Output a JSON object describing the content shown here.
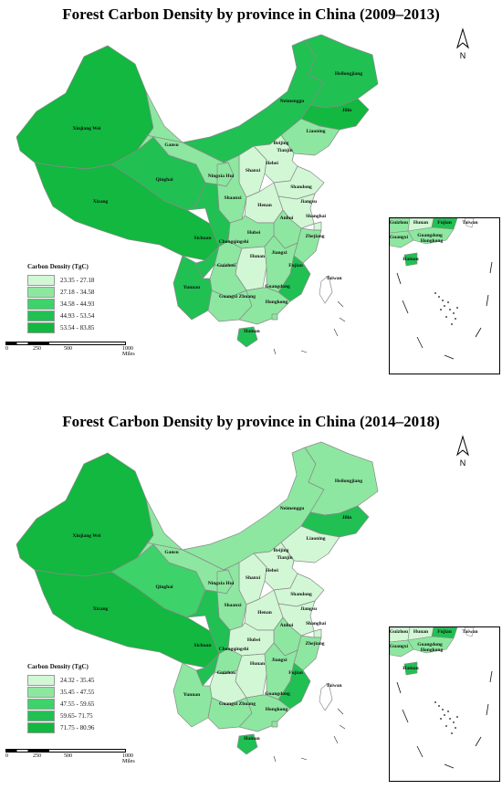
{
  "colors": {
    "c1": "#d2f7d5",
    "c2": "#8de7a0",
    "c3": "#3ed26a",
    "c4": "#20c052",
    "c5": "#12b83f",
    "border": "#8a8a8a"
  },
  "north_label": "N",
  "maps": [
    {
      "title": "Forest Carbon Density by province in China (2009–2013)",
      "legend": {
        "title": "Carbon Density (TgC)",
        "items": [
          {
            "label": "23.35 - 27.18",
            "color": "#d2f7d5"
          },
          {
            "label": "27.18 - 34.58",
            "color": "#8de7a0"
          },
          {
            "label": "34.58 - 44.93",
            "color": "#3ed26a"
          },
          {
            "label": "44.93 - 53.54",
            "color": "#20c052"
          },
          {
            "label": "53.54 - 83.85",
            "color": "#12b83f"
          }
        ]
      },
      "scale": {
        "s0": "0",
        "s1": "250",
        "s2": "500",
        "s3": "1000 Miles"
      },
      "provinces": {
        "xinjiang": {
          "name": "Xinjiang Wei",
          "cls": 5
        },
        "xizang": {
          "name": "Xizang",
          "cls": 5
        },
        "qinghai": {
          "name": "Qinghai",
          "cls": 4
        },
        "gansu": {
          "name": "Gansu",
          "cls": 2
        },
        "neimenggu": {
          "name": "Neimenggu",
          "cls": 4
        },
        "heilongjiang": {
          "name": "Heilongjiang",
          "cls": 4
        },
        "jilin": {
          "name": "Jilin",
          "cls": 5
        },
        "liaoning": {
          "name": "Liaoning",
          "cls": 2
        },
        "beijing": {
          "name": "Beijing",
          "cls": 1
        },
        "tianjin": {
          "name": "Tianjin",
          "cls": 1
        },
        "hebei": {
          "name": "Hebei",
          "cls": 1
        },
        "shanxi": {
          "name": "Shanxi",
          "cls": 1
        },
        "ningxia": {
          "name": "Ningxia Hui",
          "cls": 2
        },
        "shaanxi": {
          "name": "Shaanxi",
          "cls": 2
        },
        "shandong": {
          "name": "Shandong",
          "cls": 1
        },
        "henan": {
          "name": "Henan",
          "cls": 1
        },
        "jiangsu": {
          "name": "Jiangsu",
          "cls": 1
        },
        "shanghai": {
          "name": "Shanghai",
          "cls": 1
        },
        "anhui": {
          "name": "Anhui",
          "cls": 2
        },
        "hubei": {
          "name": "Hubei",
          "cls": 2
        },
        "sichuan": {
          "name": "Sichuan",
          "cls": 4
        },
        "chongqing": {
          "name": "Chongqingshi",
          "cls": 2
        },
        "zhejiang": {
          "name": "Zhejiang",
          "cls": 2
        },
        "hunan": {
          "name": "Hunan",
          "cls": 1
        },
        "jiangxi": {
          "name": "Jiangxi",
          "cls": 2
        },
        "guizhou": {
          "name": "Guizhou",
          "cls": 2
        },
        "fujian": {
          "name": "Fujian",
          "cls": 4
        },
        "yunnan": {
          "name": "Yunnan",
          "cls": 4
        },
        "guangxi": {
          "name": "Guangxi Zhuang",
          "cls": 2
        },
        "guangdong": {
          "name": "Guangdong",
          "cls": 2
        },
        "hongkong": {
          "name": "Hongkong",
          "cls": 2
        },
        "taiwan": {
          "name": "Taiwan",
          "cls": 0
        },
        "hainan": {
          "name": "Hainan",
          "cls": 4
        }
      }
    },
    {
      "title": "Forest Carbon Density by province in China (2014–2018)",
      "legend": {
        "title": "Carbon Density (TgC)",
        "items": [
          {
            "label": "24.32 - 35.45",
            "color": "#d2f7d5"
          },
          {
            "label": "35.45 - 47.55",
            "color": "#8de7a0"
          },
          {
            "label": "47.55 - 59.65",
            "color": "#3ed26a"
          },
          {
            "label": "59.65- 71.75",
            "color": "#20c052"
          },
          {
            "label": "71.75 - 80.96",
            "color": "#12b83f"
          }
        ]
      },
      "scale": {
        "s0": "0",
        "s1": "250",
        "s2": "500",
        "s3": "1000 Miles"
      },
      "provinces": {
        "xinjiang": {
          "name": "Xinjiang Wei",
          "cls": 5
        },
        "xizang": {
          "name": "Xizang",
          "cls": 5
        },
        "qinghai": {
          "name": "Qinghai",
          "cls": 3
        },
        "gansu": {
          "name": "Gansu",
          "cls": 2
        },
        "neimenggu": {
          "name": "Neimenggu",
          "cls": 2
        },
        "heilongjiang": {
          "name": "Heilongjiang",
          "cls": 2
        },
        "jilin": {
          "name": "Jilin",
          "cls": 4
        },
        "liaoning": {
          "name": "Liaoning",
          "cls": 1
        },
        "beijing": {
          "name": "Beijing",
          "cls": 1
        },
        "tianjin": {
          "name": "Tianjin",
          "cls": 1
        },
        "hebei": {
          "name": "Hebei",
          "cls": 1
        },
        "shanxi": {
          "name": "Shanxi",
          "cls": 1
        },
        "ningxia": {
          "name": "Ningxia Hui",
          "cls": 2
        },
        "shaanxi": {
          "name": "Shaanxi",
          "cls": 2
        },
        "shandong": {
          "name": "Shandong",
          "cls": 1
        },
        "henan": {
          "name": "Henan",
          "cls": 1
        },
        "jiangsu": {
          "name": "Jiangsu",
          "cls": 1
        },
        "shanghai": {
          "name": "Shanghai",
          "cls": 1
        },
        "anhui": {
          "name": "Anhui",
          "cls": 2
        },
        "hubei": {
          "name": "Hubei",
          "cls": 1
        },
        "sichuan": {
          "name": "Sichuan",
          "cls": 4
        },
        "chongqing": {
          "name": "Chongqingshi",
          "cls": 2
        },
        "zhejiang": {
          "name": "Zhejiang",
          "cls": 2
        },
        "hunan": {
          "name": "Hunan",
          "cls": 1
        },
        "jiangxi": {
          "name": "Jiangxi",
          "cls": 2
        },
        "guizhou": {
          "name": "Guizhou",
          "cls": 1
        },
        "fujian": {
          "name": "Fujian",
          "cls": 4
        },
        "yunnan": {
          "name": "Yunnan",
          "cls": 2
        },
        "guangxi": {
          "name": "Guangxi Zhuang",
          "cls": 2
        },
        "guangdong": {
          "name": "Guangdong",
          "cls": 2
        },
        "hongkong": {
          "name": "Hongkong",
          "cls": 2
        },
        "taiwan": {
          "name": "Taiwan",
          "cls": 0
        },
        "hainan": {
          "name": "Hainan",
          "cls": 4
        }
      }
    }
  ],
  "inset": {
    "labels": [
      "Guizhou",
      "Hunan",
      "Fujian",
      "Taiwan",
      "Guangxi",
      "Guangdong",
      "Hongkong",
      "Hainan"
    ]
  }
}
